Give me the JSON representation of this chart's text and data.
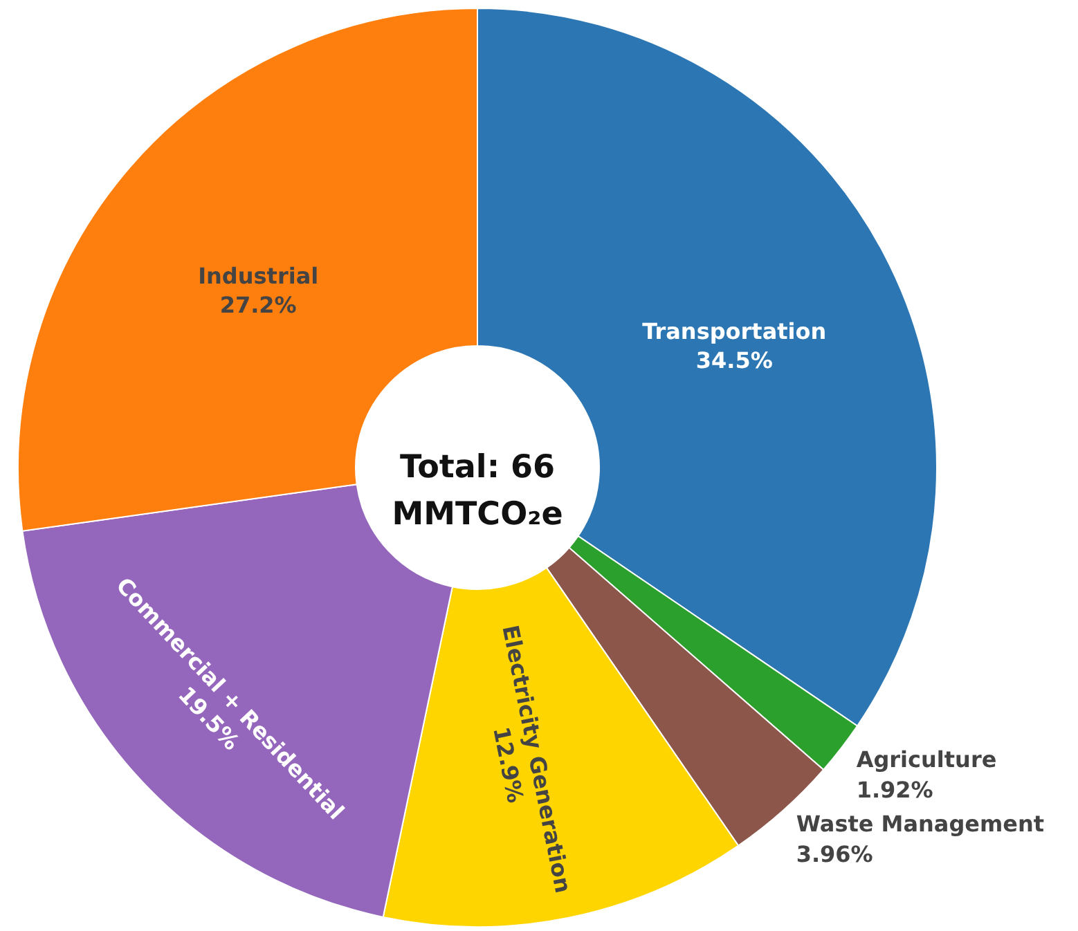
{
  "chart_data": {
    "type": "donut",
    "categories": [
      "Transportation",
      "Agriculture",
      "Waste Management",
      "Electricity Generation",
      "Commercial + Residential",
      "Industrial"
    ],
    "values": [
      34.5,
      1.92,
      3.96,
      12.9,
      19.5,
      27.2
    ],
    "colors": [
      "#2c77b3",
      "#2ca02c",
      "#8c564b",
      "#ffd500",
      "#9467bd",
      "#ff7f0e"
    ],
    "value_labels": [
      "34.5%",
      "1.92%",
      "3.96%",
      "12.9%",
      "19.5%",
      "27.2%"
    ],
    "annotations": [
      "Total: 66 MMTCO₂e"
    ]
  }
}
